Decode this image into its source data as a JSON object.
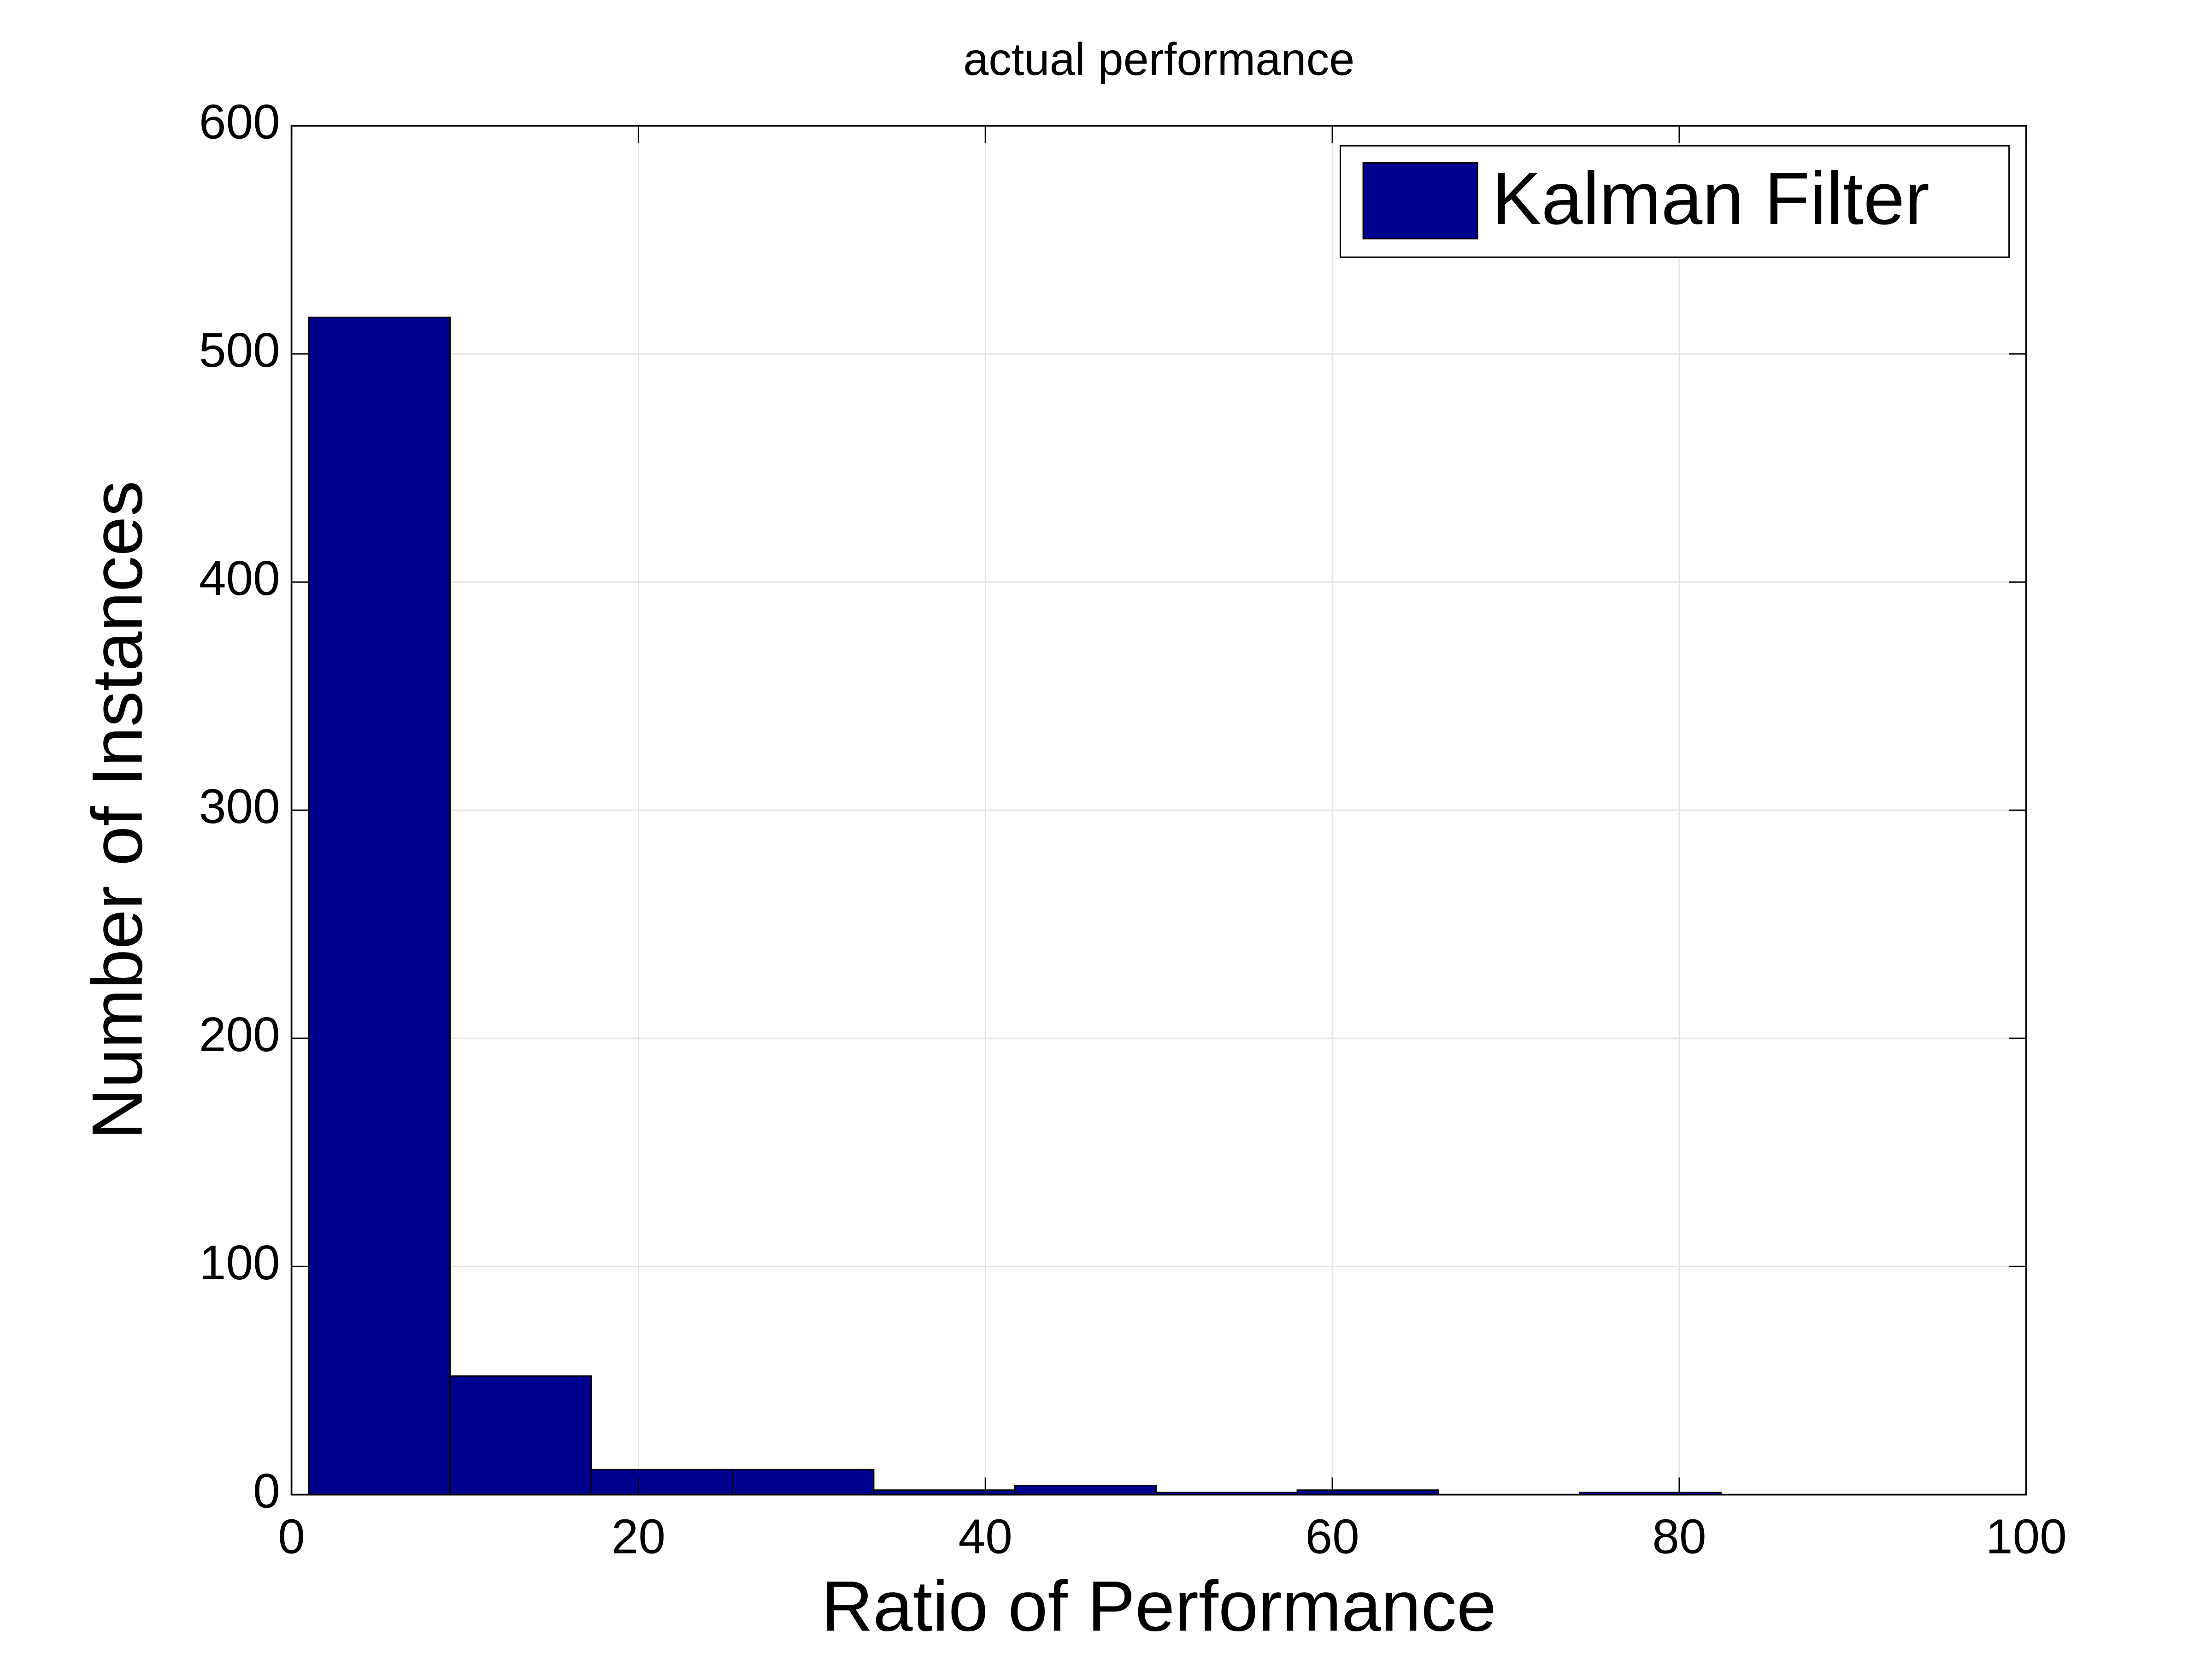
{
  "chart_data": {
    "type": "histogram",
    "title": "actual performance",
    "x_label": "Ratio of Performance",
    "y_label": "Number of Instances",
    "bins": [
      1,
      9.14,
      17.28,
      25.42,
      33.56,
      41.7,
      49.84,
      57.98,
      66.12,
      74.26,
      82.4
    ],
    "series": [
      {
        "name": "Kalman Filter",
        "color": "#00008f",
        "values": [
          516,
          52,
          11,
          11,
          2,
          4,
          1,
          2,
          0,
          1
        ]
      }
    ],
    "xlim": [
      0,
      100
    ],
    "xticks": [
      0,
      20,
      40,
      60,
      80,
      100
    ],
    "ylim": [
      0,
      600
    ],
    "yticks": [
      0,
      100,
      200,
      300,
      400,
      500,
      600
    ],
    "grid": true,
    "legend": "northeast"
  }
}
